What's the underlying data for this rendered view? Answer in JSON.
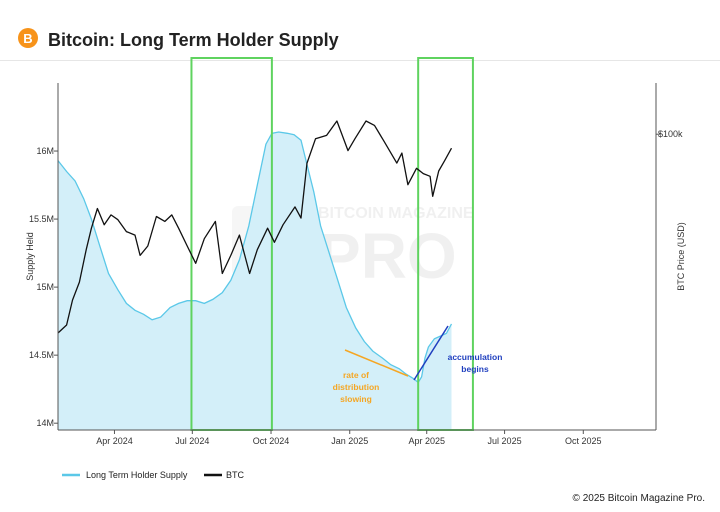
{
  "header": {
    "title": "Bitcoin: Long Term Holder Supply",
    "logo_glyph": "B",
    "logo_color": "#f7931a"
  },
  "watermark": {
    "line1": "BITCOIN MAGAZINE",
    "line2": "PRO"
  },
  "footer": {
    "copyright": "© 2025 Bitcoin Magazine Pro."
  },
  "annotations": [
    {
      "text": [
        "rate of",
        "distribution",
        "slowing"
      ],
      "color": "#f5a623"
    },
    {
      "text": [
        "accumulation",
        "begins"
      ],
      "color": "#1f3fbf"
    }
  ],
  "highlight_color": "#5fd35f",
  "chart_data": {
    "type": "area",
    "title": "Bitcoin: Long Term Holder Supply",
    "ylabel": "Supply Held",
    "y2label": "BTC Price (USD)",
    "xlim": [
      "2024-01-26",
      "2025-12-25"
    ],
    "ylim": [
      13950000,
      16500000
    ],
    "y2_ticks": [
      {
        "value": 100000,
        "label": "$100k"
      }
    ],
    "x_ticks": [
      {
        "date": "2024-04-01",
        "label": "Apr 2024"
      },
      {
        "date": "2024-07-01",
        "label": "Jul 2024"
      },
      {
        "date": "2024-10-01",
        "label": "Oct 2024"
      },
      {
        "date": "2025-01-01",
        "label": "Jan 2025"
      },
      {
        "date": "2025-04-01",
        "label": "Apr 2025"
      },
      {
        "date": "2025-07-01",
        "label": "Jul 2025"
      },
      {
        "date": "2025-10-01",
        "label": "Oct 2025"
      }
    ],
    "y_ticks": [
      {
        "value": 14000000,
        "label": "14M"
      },
      {
        "value": 14500000,
        "label": "14.5M"
      },
      {
        "value": 15000000,
        "label": "15M"
      },
      {
        "value": 15500000,
        "label": "15.5M"
      },
      {
        "value": 16000000,
        "label": "16M"
      }
    ],
    "highlight_ranges": [
      [
        "2024-06-30",
        "2024-10-02"
      ],
      [
        "2025-03-22",
        "2025-05-25"
      ]
    ],
    "grid": false,
    "legend": "bottom-left",
    "series": [
      {
        "name": "Long Term Holder Supply",
        "color": "#5bc8e8",
        "fill": "#d3eff9",
        "axis": "left",
        "points": [
          [
            "2024-01-26",
            15930000
          ],
          [
            "2024-02-05",
            15850000
          ],
          [
            "2024-02-15",
            15780000
          ],
          [
            "2024-02-25",
            15650000
          ],
          [
            "2024-03-05",
            15500000
          ],
          [
            "2024-03-15",
            15300000
          ],
          [
            "2024-03-25",
            15100000
          ],
          [
            "2024-04-05",
            14980000
          ],
          [
            "2024-04-15",
            14880000
          ],
          [
            "2024-04-25",
            14830000
          ],
          [
            "2024-05-05",
            14800000
          ],
          [
            "2024-05-15",
            14760000
          ],
          [
            "2024-05-25",
            14780000
          ],
          [
            "2024-06-05",
            14850000
          ],
          [
            "2024-06-15",
            14880000
          ],
          [
            "2024-06-25",
            14900000
          ],
          [
            "2024-07-05",
            14900000
          ],
          [
            "2024-07-15",
            14880000
          ],
          [
            "2024-07-25",
            14910000
          ],
          [
            "2024-08-05",
            14960000
          ],
          [
            "2024-08-15",
            15050000
          ],
          [
            "2024-08-25",
            15200000
          ],
          [
            "2024-09-05",
            15450000
          ],
          [
            "2024-09-15",
            15750000
          ],
          [
            "2024-09-25",
            16050000
          ],
          [
            "2024-10-02",
            16130000
          ],
          [
            "2024-10-10",
            16140000
          ],
          [
            "2024-10-20",
            16130000
          ],
          [
            "2024-10-28",
            16120000
          ],
          [
            "2024-11-05",
            16080000
          ],
          [
            "2024-11-12",
            15900000
          ],
          [
            "2024-11-20",
            15700000
          ],
          [
            "2024-11-28",
            15450000
          ],
          [
            "2024-12-08",
            15250000
          ],
          [
            "2024-12-18",
            15050000
          ],
          [
            "2024-12-28",
            14850000
          ],
          [
            "2025-01-08",
            14700000
          ],
          [
            "2025-01-18",
            14600000
          ],
          [
            "2025-01-28",
            14530000
          ],
          [
            "2025-02-08",
            14480000
          ],
          [
            "2025-02-18",
            14430000
          ],
          [
            "2025-02-28",
            14400000
          ],
          [
            "2025-03-08",
            14360000
          ],
          [
            "2025-03-16",
            14330000
          ],
          [
            "2025-03-22",
            14300000
          ],
          [
            "2025-03-26",
            14340000
          ],
          [
            "2025-03-30",
            14480000
          ],
          [
            "2025-04-03",
            14560000
          ],
          [
            "2025-04-10",
            14620000
          ],
          [
            "2025-04-17",
            14640000
          ],
          [
            "2025-04-24",
            14660000
          ],
          [
            "2025-04-30",
            14730000
          ]
        ]
      },
      {
        "name": "BTC",
        "color": "#111111",
        "axis": "right",
        "points": [
          [
            "2024-01-26",
            41500
          ],
          [
            "2024-02-05",
            43000
          ],
          [
            "2024-02-12",
            48000
          ],
          [
            "2024-02-20",
            52000
          ],
          [
            "2024-02-28",
            60000
          ],
          [
            "2024-03-05",
            66000
          ],
          [
            "2024-03-12",
            72000
          ],
          [
            "2024-03-20",
            67000
          ],
          [
            "2024-03-28",
            70000
          ],
          [
            "2024-04-05",
            68500
          ],
          [
            "2024-04-15",
            65000
          ],
          [
            "2024-04-25",
            64000
          ],
          [
            "2024-05-01",
            58500
          ],
          [
            "2024-05-10",
            61000
          ],
          [
            "2024-05-20",
            69500
          ],
          [
            "2024-05-30",
            68000
          ],
          [
            "2024-06-07",
            70000
          ],
          [
            "2024-06-15",
            66000
          ],
          [
            "2024-06-25",
            61000
          ],
          [
            "2024-07-05",
            56500
          ],
          [
            "2024-07-15",
            63000
          ],
          [
            "2024-07-28",
            68000
          ],
          [
            "2024-08-05",
            54000
          ],
          [
            "2024-08-15",
            58500
          ],
          [
            "2024-08-25",
            64000
          ],
          [
            "2024-09-06",
            54000
          ],
          [
            "2024-09-15",
            60000
          ],
          [
            "2024-09-27",
            66000
          ],
          [
            "2024-10-05",
            62000
          ],
          [
            "2024-10-15",
            67000
          ],
          [
            "2024-10-29",
            72500
          ],
          [
            "2024-11-05",
            69000
          ],
          [
            "2024-11-12",
            88000
          ],
          [
            "2024-11-22",
            98000
          ],
          [
            "2024-12-05",
            99500
          ],
          [
            "2024-12-17",
            106000
          ],
          [
            "2024-12-30",
            93000
          ],
          [
            "2025-01-07",
            98000
          ],
          [
            "2025-01-20",
            106000
          ],
          [
            "2025-01-30",
            104000
          ],
          [
            "2025-02-10",
            97000
          ],
          [
            "2025-02-25",
            88000
          ],
          [
            "2025-03-03",
            92000
          ],
          [
            "2025-03-10",
            80000
          ],
          [
            "2025-03-20",
            86000
          ],
          [
            "2025-03-28",
            84000
          ],
          [
            "2025-04-05",
            83000
          ],
          [
            "2025-04-08",
            76000
          ],
          [
            "2025-04-15",
            85000
          ],
          [
            "2025-04-22",
            89000
          ],
          [
            "2025-04-30",
            94000
          ]
        ]
      }
    ]
  }
}
